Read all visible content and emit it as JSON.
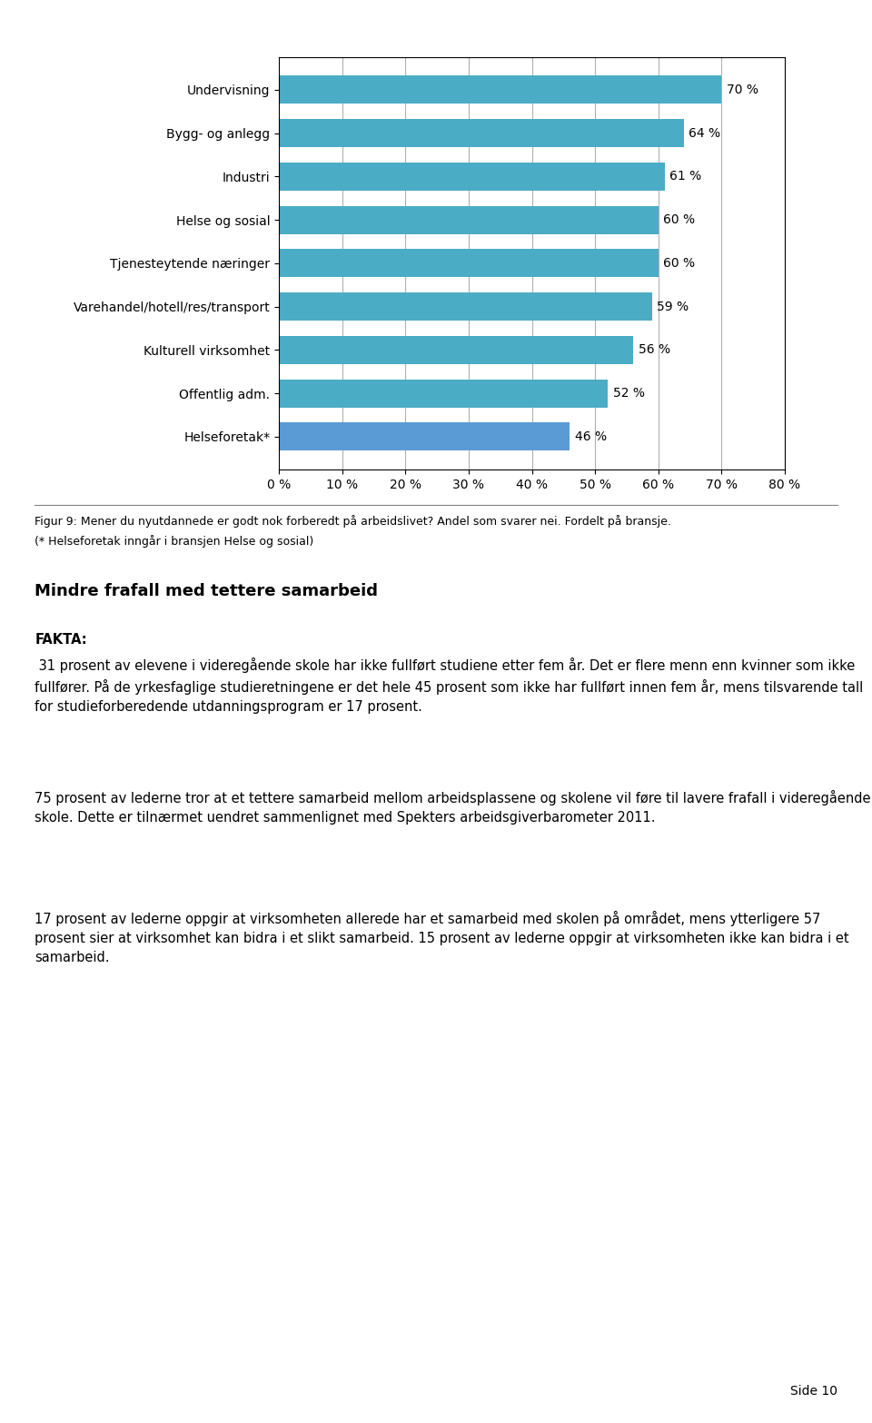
{
  "chart_data": {
    "type": "bar",
    "orientation": "horizontal",
    "categories": [
      "Helseforetak*",
      "Offentlig adm.",
      "Kulturell virksomhet",
      "Varehandel/hotell/res/transport",
      "Tjenesteytende næringer",
      "Helse og sosial",
      "Industri",
      "Bygg- og anlegg",
      "Undervisning"
    ],
    "values": [
      46,
      52,
      56,
      59,
      60,
      60,
      61,
      64,
      70
    ],
    "value_labels": [
      "46 %",
      "52 %",
      "56 %",
      "59 %",
      "60 %",
      "60 %",
      "61 %",
      "64 %",
      "70 %"
    ],
    "data_labels": true,
    "colors": [
      "#5B9BD5",
      "#4BACC6",
      "#4BACC6",
      "#4BACC6",
      "#4BACC6",
      "#4BACC6",
      "#4BACC6",
      "#4BACC6",
      "#4BACC6"
    ],
    "xlim": [
      0,
      80
    ],
    "xticks": [
      {
        "value": 0,
        "label": "0 %"
      },
      {
        "value": 10,
        "label": "10 %"
      },
      {
        "value": 20,
        "label": "20 %"
      },
      {
        "value": 30,
        "label": "30 %"
      },
      {
        "value": 40,
        "label": "40 %"
      },
      {
        "value": 50,
        "label": "50 %"
      },
      {
        "value": 60,
        "label": "60 %"
      },
      {
        "value": 70,
        "label": "70 %"
      },
      {
        "value": 80,
        "label": "80 %"
      }
    ],
    "grid": true,
    "caption": [
      "Figur 9: Mener du nyutdannede er godt nok forberedt på arbeidslivet? Andel som svarer nei. Fordelt på bransje.",
      "(* Helseforetak inngår i bransjen Helse og sosial)"
    ],
    "section_heading": "Mindre frafall med tettere samarbeid",
    "fakta_label": "FAKTA:",
    "fakta_text": " 31 prosent av elevene i videregående skole har ikke fullført studiene etter fem år. Det er flere menn enn kvinner som ikke fullfører. På de yrkesfaglige studieretningene er det hele 45 prosent som ikke har fullført innen fem år, mens tilsvarende tall for studieforberedende utdanningsprogram er 17 prosent.",
    "paragraphs": [
      "75 prosent av lederne tror at et tettere samarbeid mellom arbeidsplassene og skolene vil føre til lavere frafall i videregående skole. Dette er tilnærmet uendret sammenlignet med Spekters arbeidsgiverbarometer 2011.",
      "17 prosent av lederne oppgir at virksomheten allerede har et samarbeid med skolen på området, mens ytterligere 57 prosent sier at virksomhet kan bidra i et slikt samarbeid. 15 prosent av lederne oppgir at virksomheten ikke kan bidra i et samarbeid."
    ],
    "page_number": "Side 10"
  }
}
